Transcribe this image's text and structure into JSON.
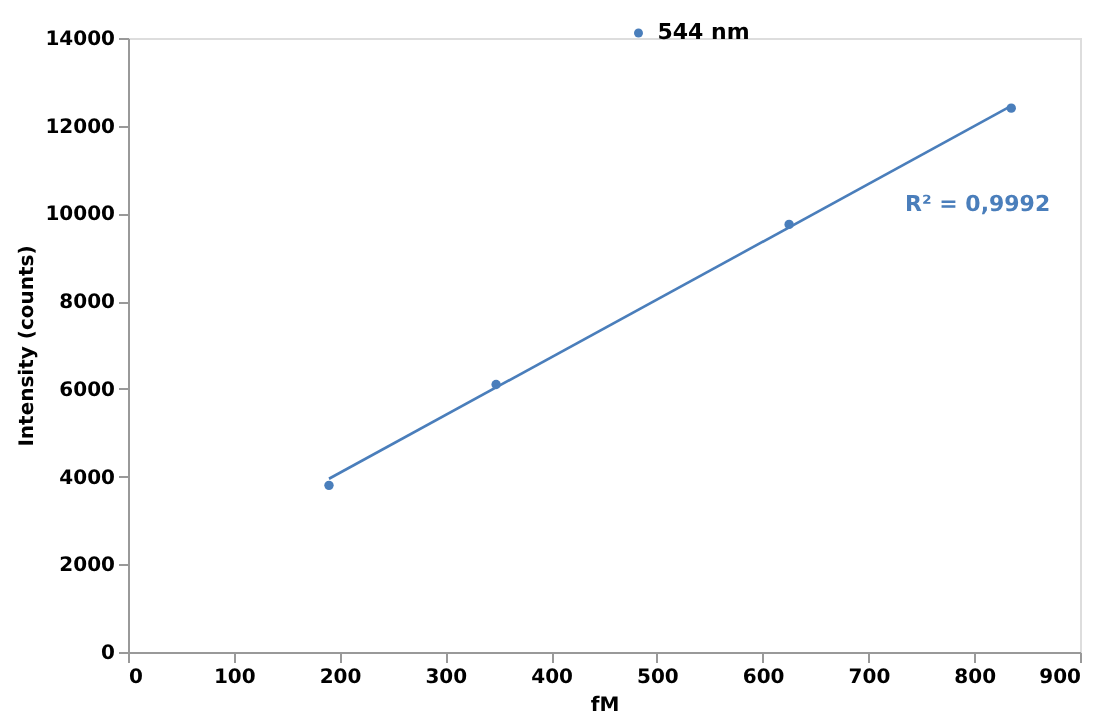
{
  "chart_data": {
    "type": "scatter",
    "xlabel": "fM",
    "ylabel": "Intensity (counts)",
    "xlim": [
      0,
      900
    ],
    "xticks": [
      0,
      100,
      200,
      300,
      400,
      500,
      600,
      700,
      800,
      900
    ],
    "ylim": [
      0,
      14000
    ],
    "yticks": [
      0,
      2000,
      4000,
      6000,
      8000,
      10000,
      12000,
      14000
    ],
    "grid": false,
    "legend": "top",
    "series": [
      {
        "name": "544 nm",
        "color": "#4a7ebb",
        "marker": "circle",
        "x": [
          190,
          348,
          625,
          835
        ],
        "values": [
          3800,
          6100,
          9750,
          12400
        ]
      },
      {
        "color": "#4a7ebb",
        "type": "line",
        "marker": "none",
        "line_style": "solid",
        "x": [
          190,
          835
        ],
        "values": [
          3950,
          12450
        ]
      }
    ],
    "annotations": [
      "R² = 0,9992"
    ]
  }
}
